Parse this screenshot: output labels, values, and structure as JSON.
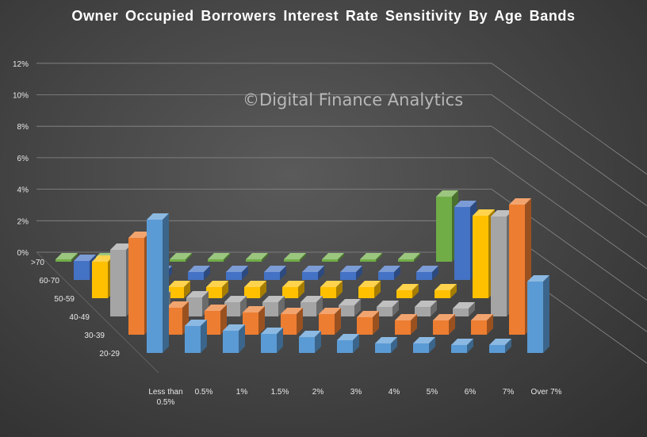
{
  "chart_data": {
    "type": "bar",
    "title": "Owner Occupied Borrowers Interest Rate Sensitivity By Age Bands",
    "watermark": "©Digital Finance Analytics",
    "xlabel": "",
    "ylabel": "",
    "y_ticks": [
      "0%",
      "2%",
      "4%",
      "6%",
      "8%",
      "10%",
      "12%"
    ],
    "ylim": [
      0,
      12
    ],
    "categories": [
      "Less than 0.5%",
      "0.5%",
      "1%",
      "1.5%",
      "2%",
      "3%",
      "4%",
      "5%",
      "6%",
      "7%",
      "Over 7%"
    ],
    "category_lines": [
      [
        "Less than",
        "0.5%"
      ],
      [
        "0.5%"
      ],
      [
        "1%"
      ],
      [
        "1.5%"
      ],
      [
        "2%"
      ],
      [
        "3%"
      ],
      [
        "4%"
      ],
      [
        "5%"
      ],
      [
        "6%"
      ],
      [
        "7%"
      ],
      [
        "Over 7%"
      ]
    ],
    "series": [
      {
        "name": ">70",
        "color": "#70ad47",
        "values": [
          0,
          0,
          0,
          0,
          0,
          0,
          0,
          0,
          0,
          0,
          4.1
        ]
      },
      {
        "name": "60-70",
        "color": "#4472c4",
        "values": [
          1.2,
          0.5,
          0.5,
          0.5,
          0.5,
          0.5,
          0.5,
          0.5,
          0.5,
          0.5,
          4.6
        ]
      },
      {
        "name": "50-59",
        "color": "#ffc000",
        "values": [
          2.3,
          0.7,
          0.7,
          0.7,
          0.7,
          0.7,
          0.7,
          0.7,
          0.5,
          0.5,
          5.2
        ]
      },
      {
        "name": "40-49",
        "color": "#a5a5a5",
        "values": [
          4.2,
          1.2,
          1.2,
          0.9,
          0.9,
          0.9,
          0.7,
          0.6,
          0.6,
          0.5,
          6.3
        ]
      },
      {
        "name": "30-39",
        "color": "#ed7d31",
        "values": [
          6.1,
          1.7,
          1.5,
          1.4,
          1.3,
          1.3,
          1.1,
          0.9,
          0.9,
          0.9,
          8.2
        ]
      },
      {
        "name": "20-29",
        "color": "#5b9bd5",
        "values": [
          8.4,
          1.7,
          1.4,
          1.2,
          1.0,
          0.8,
          0.6,
          0.6,
          0.5,
          0.5,
          4.5
        ]
      }
    ],
    "grid": true,
    "view": "3d-columns"
  }
}
